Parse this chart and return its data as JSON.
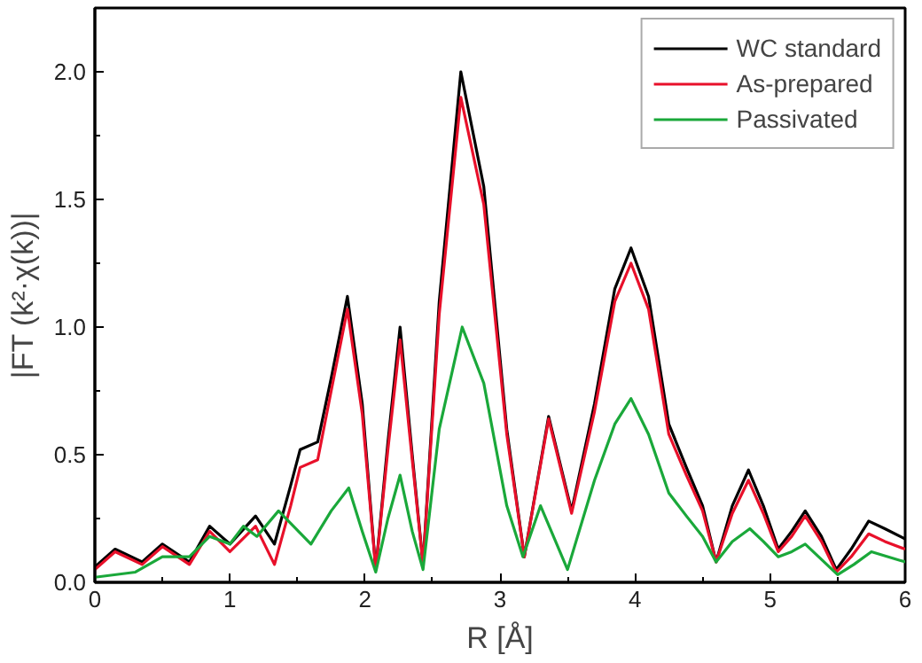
{
  "chart_data": {
    "type": "line",
    "xlabel": "R [Å]",
    "ylabel": "|FT (k²·χ(k))|",
    "xlim": [
      0,
      6
    ],
    "ylim": [
      0,
      2.25
    ],
    "xticks": [
      0,
      1,
      2,
      3,
      4,
      5,
      6
    ],
    "yticks": [
      {
        "value": 0,
        "label": "0.0"
      },
      {
        "value": 0.5,
        "label": "0.5"
      },
      {
        "value": 1,
        "label": "1.0"
      },
      {
        "value": 1.5,
        "label": "1.5"
      },
      {
        "value": 2,
        "label": "2.0"
      }
    ],
    "grid": false,
    "legend": "top right",
    "marker": "none",
    "line_style": "solid",
    "series": [
      {
        "name": "WC standard",
        "color": "#000000",
        "x": [
          0,
          0.15,
          0.35,
          0.5,
          0.7,
          0.85,
          1.0,
          1.19,
          1.33,
          1.45,
          1.52,
          1.65,
          1.75,
          1.87,
          1.98,
          2.08,
          2.17,
          2.26,
          2.35,
          2.43,
          2.55,
          2.71,
          2.88,
          3.05,
          3.18,
          3.36,
          3.53,
          3.7,
          3.85,
          3.97,
          4.1,
          4.25,
          4.38,
          4.5,
          4.6,
          4.72,
          4.84,
          4.95,
          5.06,
          5.16,
          5.26,
          5.38,
          5.49,
          5.6,
          5.73,
          5.85,
          6.0
        ],
        "values": [
          0.06,
          0.13,
          0.08,
          0.15,
          0.08,
          0.22,
          0.15,
          0.26,
          0.15,
          0.38,
          0.52,
          0.55,
          0.8,
          1.12,
          0.7,
          0.05,
          0.55,
          1.0,
          0.5,
          0.07,
          1.1,
          2.0,
          1.55,
          0.6,
          0.1,
          0.65,
          0.28,
          0.7,
          1.15,
          1.31,
          1.12,
          0.62,
          0.45,
          0.3,
          0.08,
          0.3,
          0.44,
          0.3,
          0.13,
          0.2,
          0.28,
          0.18,
          0.05,
          0.13,
          0.24,
          0.21,
          0.17
        ]
      },
      {
        "name": "As-prepared",
        "color": "#e8102a",
        "x": [
          0,
          0.15,
          0.35,
          0.5,
          0.7,
          0.85,
          1.0,
          1.19,
          1.33,
          1.45,
          1.52,
          1.65,
          1.75,
          1.87,
          1.98,
          2.08,
          2.17,
          2.26,
          2.35,
          2.43,
          2.55,
          2.71,
          2.88,
          3.05,
          3.18,
          3.36,
          3.53,
          3.7,
          3.85,
          3.97,
          4.1,
          4.25,
          4.38,
          4.5,
          4.6,
          4.72,
          4.84,
          4.95,
          5.06,
          5.16,
          5.26,
          5.38,
          5.49,
          5.6,
          5.73,
          5.85,
          6.0
        ],
        "values": [
          0.05,
          0.12,
          0.07,
          0.14,
          0.07,
          0.2,
          0.12,
          0.22,
          0.07,
          0.3,
          0.45,
          0.48,
          0.75,
          1.07,
          0.66,
          0.05,
          0.52,
          0.95,
          0.48,
          0.07,
          1.05,
          1.9,
          1.48,
          0.58,
          0.1,
          0.64,
          0.27,
          0.67,
          1.1,
          1.25,
          1.07,
          0.58,
          0.42,
          0.28,
          0.08,
          0.27,
          0.4,
          0.27,
          0.12,
          0.18,
          0.26,
          0.16,
          0.04,
          0.1,
          0.19,
          0.16,
          0.13
        ]
      },
      {
        "name": "Passivated",
        "color": "#1aa83a",
        "x": [
          0,
          0.3,
          0.5,
          0.7,
          0.85,
          1.0,
          1.1,
          1.2,
          1.36,
          1.6,
          1.75,
          1.88,
          1.98,
          2.08,
          2.17,
          2.26,
          2.35,
          2.43,
          2.55,
          2.72,
          2.88,
          3.05,
          3.17,
          3.3,
          3.5,
          3.7,
          3.85,
          3.97,
          4.1,
          4.25,
          4.38,
          4.5,
          4.6,
          4.72,
          4.85,
          4.95,
          5.06,
          5.16,
          5.26,
          5.38,
          5.5,
          5.62,
          5.75,
          6.0
        ],
        "values": [
          0.02,
          0.04,
          0.1,
          0.1,
          0.18,
          0.15,
          0.22,
          0.18,
          0.28,
          0.15,
          0.28,
          0.37,
          0.2,
          0.04,
          0.25,
          0.42,
          0.2,
          0.05,
          0.6,
          1.0,
          0.78,
          0.3,
          0.1,
          0.3,
          0.05,
          0.4,
          0.62,
          0.72,
          0.58,
          0.35,
          0.26,
          0.18,
          0.08,
          0.16,
          0.21,
          0.16,
          0.1,
          0.12,
          0.15,
          0.09,
          0.03,
          0.07,
          0.12,
          0.08
        ]
      }
    ]
  }
}
